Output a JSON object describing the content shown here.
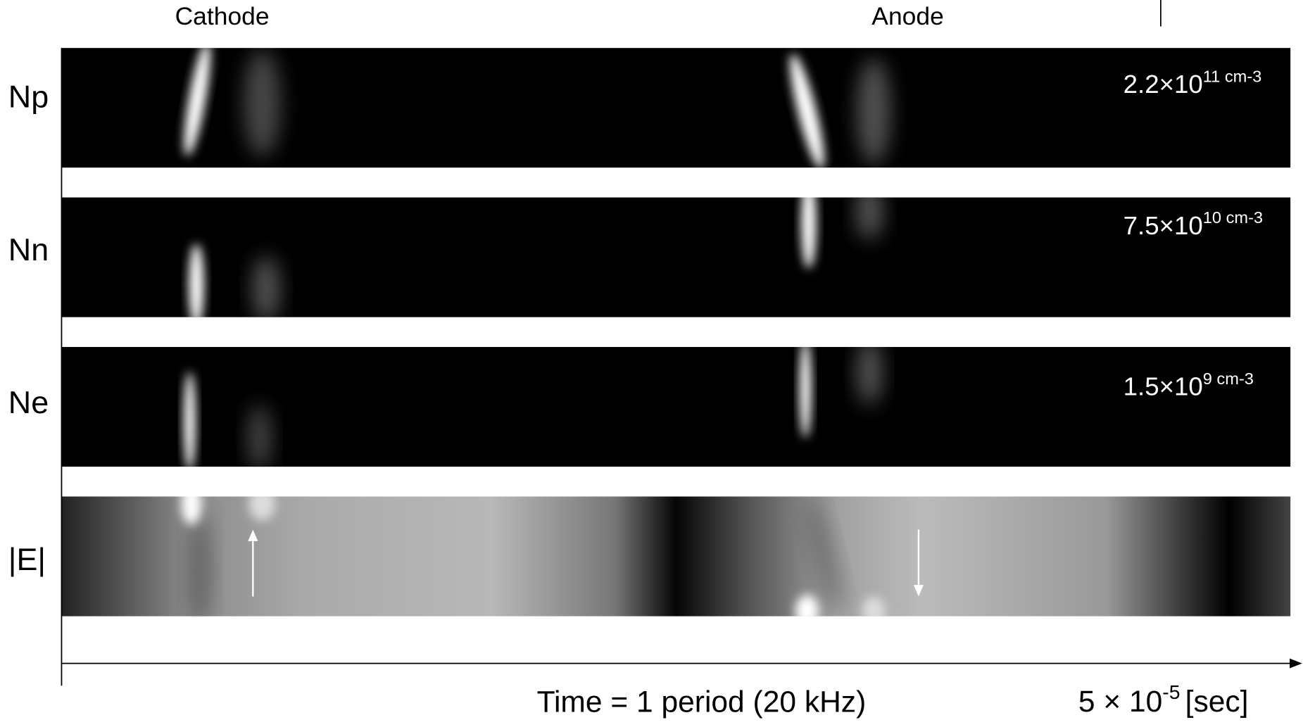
{
  "header": {
    "left": "Cathode",
    "right": "Anode"
  },
  "rows": [
    {
      "label": "Np",
      "scale": {
        "base": "2.2×10",
        "exponent": "11 cm-3"
      }
    },
    {
      "label": "Nn",
      "scale": {
        "base": "7.5×10",
        "exponent": "10 cm-3"
      }
    },
    {
      "label": "Ne",
      "scale": {
        "base": "1.5×10",
        "exponent": "9 cm-3"
      }
    },
    {
      "label": "|E|"
    }
  ],
  "axis": {
    "label": "Time = 1 period (20 kHz)",
    "end": {
      "base": "5 × 10",
      "exponent": "-5",
      "unit": "[sec]"
    }
  }
}
